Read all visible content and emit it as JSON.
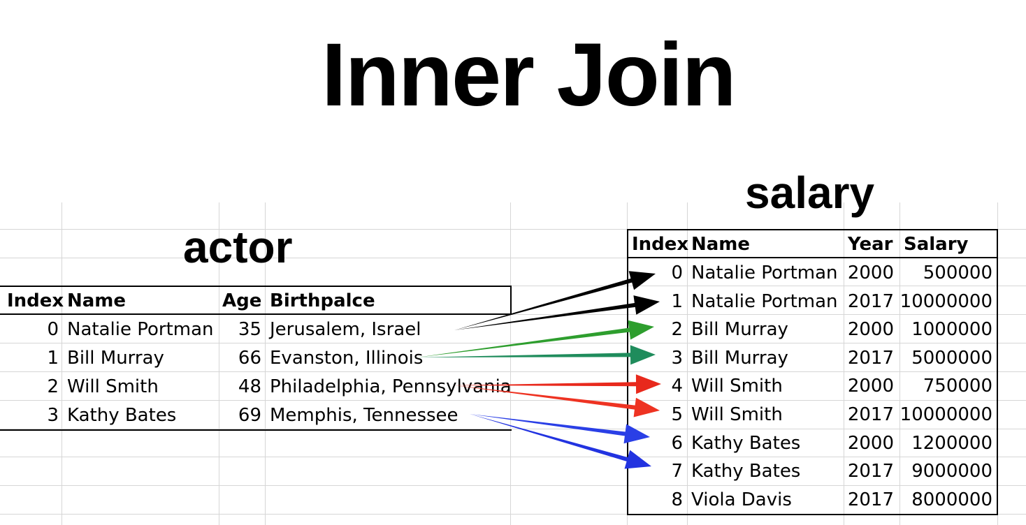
{
  "title": "Inner Join",
  "actor": {
    "label": "actor",
    "columns": [
      "Index",
      "Name",
      "Age",
      "Birthpalce"
    ],
    "rows": [
      {
        "index": "0",
        "name": "Natalie Portman",
        "age": "35",
        "birthplace": "Jerusalem, Israel"
      },
      {
        "index": "1",
        "name": "Bill Murray",
        "age": "66",
        "birthplace": "Evanston, Illinois"
      },
      {
        "index": "2",
        "name": "Will Smith",
        "age": "48",
        "birthplace": "Philadelphia, Pennsylvania"
      },
      {
        "index": "3",
        "name": "Kathy Bates",
        "age": "69",
        "birthplace": "Memphis, Tennessee"
      }
    ]
  },
  "salary": {
    "label": "salary",
    "columns": [
      "Index",
      "Name",
      "Year",
      "Salary"
    ],
    "rows": [
      {
        "index": "0",
        "name": "Natalie Portman",
        "year": "2000",
        "salary": "500000"
      },
      {
        "index": "1",
        "name": "Natalie Portman",
        "year": "2017",
        "salary": "10000000"
      },
      {
        "index": "2",
        "name": "Bill Murray",
        "year": "2000",
        "salary": "1000000"
      },
      {
        "index": "3",
        "name": "Bill Murray",
        "year": "2017",
        "salary": "5000000"
      },
      {
        "index": "4",
        "name": "Will Smith",
        "year": "2000",
        "salary": "750000"
      },
      {
        "index": "5",
        "name": "Will Smith",
        "year": "2017",
        "salary": "10000000"
      },
      {
        "index": "6",
        "name": "Kathy Bates",
        "year": "2000",
        "salary": "1200000"
      },
      {
        "index": "7",
        "name": "Kathy Bates",
        "year": "2017",
        "salary": "9000000"
      },
      {
        "index": "8",
        "name": "Viola Davis",
        "year": "2017",
        "salary": "8000000"
      }
    ]
  },
  "links": [
    {
      "from": 0,
      "to": 0,
      "color": "#000000"
    },
    {
      "from": 0,
      "to": 1,
      "color": "#000000"
    },
    {
      "from": 1,
      "to": 2,
      "color": "#2e9e2e"
    },
    {
      "from": 1,
      "to": 3,
      "color": "#1f8c5c"
    },
    {
      "from": 2,
      "to": 4,
      "color": "#e8291c"
    },
    {
      "from": 2,
      "to": 5,
      "color": "#ee3322"
    },
    {
      "from": 3,
      "to": 6,
      "color": "#2a3fe6"
    },
    {
      "from": 3,
      "to": 7,
      "color": "#2233e0"
    }
  ]
}
